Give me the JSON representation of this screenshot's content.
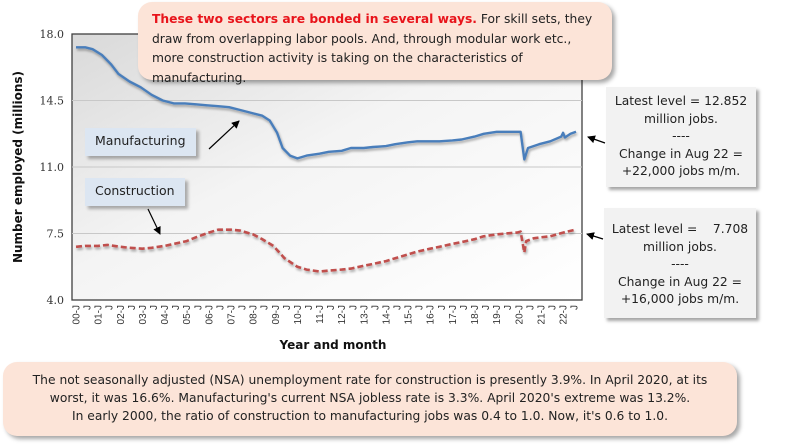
{
  "chart_data": {
    "type": "line",
    "title": "",
    "xlabel": "Year and month",
    "ylabel": "Number employed (millions)",
    "ylim": [
      4.0,
      18.0
    ],
    "yticks": [
      "18.0",
      "14.5",
      "11.0",
      "7.5",
      "4.0"
    ],
    "ytick_values": [
      18.0,
      14.5,
      11.0,
      7.5,
      4.0
    ],
    "grid": true,
    "x_start": "2000-01",
    "x_end": "2022-08",
    "xtick_labels": [
      "00-J",
      "J",
      "01-J",
      "J",
      "02-J",
      "J",
      "03-J",
      "J",
      "04-J",
      "J",
      "05-J",
      "J",
      "06-J",
      "J",
      "07-J",
      "J",
      "08-J",
      "J",
      "09-J",
      "J",
      "10-J",
      "J",
      "11-J",
      "J",
      "12-J",
      "J",
      "13-J",
      "J",
      "14-J",
      "J",
      "15-J",
      "J",
      "16-J",
      "J",
      "17-J",
      "J",
      "18-J",
      "J",
      "19-J",
      "J",
      "20-J",
      "J",
      "21-J",
      "J",
      "22-J",
      "J"
    ],
    "series": [
      {
        "name": "Manufacturing",
        "color": "#4a7ebb",
        "style": "solid",
        "points": [
          [
            "2000-01",
            17.3
          ],
          [
            "2000-06",
            17.3
          ],
          [
            "2000-10",
            17.2
          ],
          [
            "2001-03",
            16.9
          ],
          [
            "2001-08",
            16.4
          ],
          [
            "2001-12",
            15.9
          ],
          [
            "2002-06",
            15.5
          ],
          [
            "2002-12",
            15.2
          ],
          [
            "2003-06",
            14.8
          ],
          [
            "2003-12",
            14.5
          ],
          [
            "2004-06",
            14.35
          ],
          [
            "2004-12",
            14.35
          ],
          [
            "2005-06",
            14.3
          ],
          [
            "2005-12",
            14.25
          ],
          [
            "2006-06",
            14.2
          ],
          [
            "2006-12",
            14.15
          ],
          [
            "2007-06",
            14.0
          ],
          [
            "2007-12",
            13.85
          ],
          [
            "2008-06",
            13.7
          ],
          [
            "2008-10",
            13.45
          ],
          [
            "2009-02",
            12.8
          ],
          [
            "2009-05",
            12.0
          ],
          [
            "2009-09",
            11.6
          ],
          [
            "2010-01",
            11.45
          ],
          [
            "2010-06",
            11.6
          ],
          [
            "2011-01",
            11.7
          ],
          [
            "2011-06",
            11.8
          ],
          [
            "2012-01",
            11.85
          ],
          [
            "2012-06",
            12.0
          ],
          [
            "2013-01",
            12.0
          ],
          [
            "2013-06",
            12.05
          ],
          [
            "2014-01",
            12.1
          ],
          [
            "2014-06",
            12.2
          ],
          [
            "2015-01",
            12.3
          ],
          [
            "2015-06",
            12.35
          ],
          [
            "2016-01",
            12.35
          ],
          [
            "2016-06",
            12.35
          ],
          [
            "2017-01",
            12.4
          ],
          [
            "2017-06",
            12.45
          ],
          [
            "2018-01",
            12.6
          ],
          [
            "2018-06",
            12.75
          ],
          [
            "2019-01",
            12.85
          ],
          [
            "2019-06",
            12.85
          ],
          [
            "2019-12",
            12.85
          ],
          [
            "2020-02",
            12.85
          ],
          [
            "2020-04",
            11.4
          ],
          [
            "2020-06",
            12.0
          ],
          [
            "2020-12",
            12.2
          ],
          [
            "2021-06",
            12.35
          ],
          [
            "2021-12",
            12.6
          ],
          [
            "2022-01",
            12.8
          ],
          [
            "2022-02",
            12.55
          ],
          [
            "2022-05",
            12.75
          ],
          [
            "2022-08",
            12.85
          ]
        ]
      },
      {
        "name": "Construction",
        "color": "#c0504d",
        "style": "dashed",
        "points": [
          [
            "2000-01",
            6.8
          ],
          [
            "2000-06",
            6.85
          ],
          [
            "2001-01",
            6.85
          ],
          [
            "2001-06",
            6.9
          ],
          [
            "2002-01",
            6.8
          ],
          [
            "2002-06",
            6.75
          ],
          [
            "2003-01",
            6.7
          ],
          [
            "2003-06",
            6.75
          ],
          [
            "2004-01",
            6.85
          ],
          [
            "2004-06",
            6.95
          ],
          [
            "2005-01",
            7.1
          ],
          [
            "2005-06",
            7.3
          ],
          [
            "2006-01",
            7.55
          ],
          [
            "2006-06",
            7.7
          ],
          [
            "2007-01",
            7.7
          ],
          [
            "2007-06",
            7.65
          ],
          [
            "2008-01",
            7.45
          ],
          [
            "2008-06",
            7.2
          ],
          [
            "2008-12",
            6.85
          ],
          [
            "2009-06",
            6.2
          ],
          [
            "2010-01",
            5.75
          ],
          [
            "2010-06",
            5.6
          ],
          [
            "2011-01",
            5.5
          ],
          [
            "2011-06",
            5.55
          ],
          [
            "2012-01",
            5.6
          ],
          [
            "2012-06",
            5.65
          ],
          [
            "2013-01",
            5.8
          ],
          [
            "2013-06",
            5.9
          ],
          [
            "2014-01",
            6.05
          ],
          [
            "2014-06",
            6.2
          ],
          [
            "2015-01",
            6.4
          ],
          [
            "2015-06",
            6.55
          ],
          [
            "2016-01",
            6.7
          ],
          [
            "2016-06",
            6.8
          ],
          [
            "2017-01",
            6.95
          ],
          [
            "2017-06",
            7.05
          ],
          [
            "2018-01",
            7.2
          ],
          [
            "2018-06",
            7.35
          ],
          [
            "2019-01",
            7.45
          ],
          [
            "2019-06",
            7.5
          ],
          [
            "2019-12",
            7.55
          ],
          [
            "2020-02",
            7.6
          ],
          [
            "2020-04",
            6.5
          ],
          [
            "2020-05",
            7.1
          ],
          [
            "2020-09",
            7.25
          ],
          [
            "2021-01",
            7.3
          ],
          [
            "2021-06",
            7.35
          ],
          [
            "2022-01",
            7.55
          ],
          [
            "2022-08",
            7.71
          ]
        ]
      }
    ]
  },
  "annotations": {
    "top_note": {
      "highlight": "These two sectors are bonded in several ways.",
      "text": " For skill sets, they draw from overlapping labor pools. And, through modular work etc., more construction activity is taking on the characteristics of manufacturing."
    },
    "bottom_note": {
      "line1": "The not seasonally adjusted (NSA) unemployment rate for construction is presently 3.9%. In April 2020, at its",
      "line2": "worst, it was 16.6%. Manufacturing's current NSA jobless rate is 3.3%. April 2020's extreme was 13.2%.",
      "line3": "In early 2000, the ratio of construction to manufacturing jobs was 0.4 to 1.0. Now, it's 0.6 to 1.0."
    },
    "manufacturing_label": "Manufacturing",
    "construction_label": "Construction",
    "manufacturing_box": {
      "line1": "Latest level = 12.852",
      "line2": "million jobs.",
      "line3": "----",
      "line4": "Change in Aug 22 =",
      "line5": "+22,000 jobs m/m."
    },
    "construction_box": {
      "line1": "Latest level =    7.708",
      "line2": "million jobs.",
      "line3": "----",
      "line4": "Change in Aug 22 =",
      "line5": "+16,000 jobs m/m."
    }
  }
}
